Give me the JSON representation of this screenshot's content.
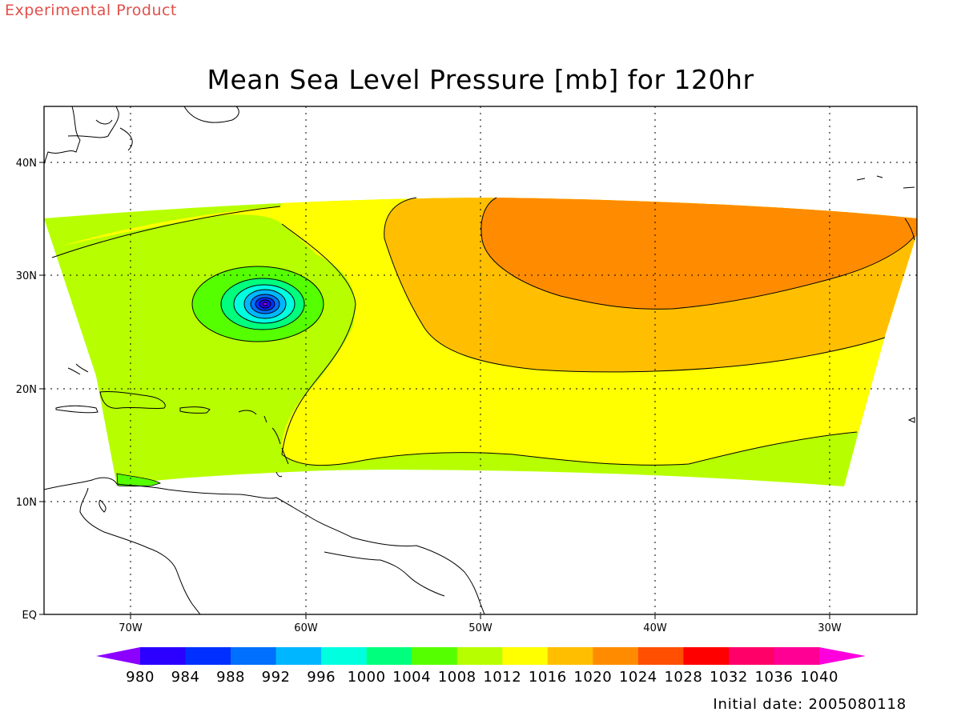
{
  "header": {
    "experimental_label": "Experimental Product",
    "title": "Mean Sea Level Pressure [mb] for 120hr"
  },
  "footer": {
    "initial_date": "Initial date: 2005080118"
  },
  "map": {
    "lat_labels": [
      "40N",
      "30N",
      "20N",
      "10N",
      "EQ"
    ],
    "lon_labels": [
      "70W",
      "60W",
      "50W",
      "40W",
      "30W"
    ],
    "domain": {
      "lon_range": [
        -75,
        -25
      ],
      "lat_range": [
        0,
        45
      ]
    },
    "storm_center": {
      "lon": -62.3,
      "lat": 27.4
    },
    "fields": [
      {
        "name": "1008-1012 band",
        "color": "#b7ff00"
      },
      {
        "name": "1012-1016 band",
        "color": "#ffff00"
      },
      {
        "name": "1016-1020 band",
        "color": "#ffbf00"
      },
      {
        "name": "1020-1024 band",
        "color": "#ff8c00"
      },
      {
        "name": "1004-1008 band",
        "color": "#55ff00"
      }
    ]
  },
  "colorbar": {
    "levels": [
      "980",
      "984",
      "988",
      "992",
      "996",
      "1000",
      "1004",
      "1008",
      "1012",
      "1016",
      "1020",
      "1024",
      "1028",
      "1032",
      "1036",
      "1040"
    ],
    "colors": [
      "#8c00ff",
      "#2b00ff",
      "#0030ff",
      "#0070ff",
      "#00b7ff",
      "#00ffdf",
      "#00ff7d",
      "#55ff00",
      "#b7ff00",
      "#ffff00",
      "#ffbf00",
      "#ff8c00",
      "#ff4f00",
      "#ff0000",
      "#ff0068",
      "#ff0095",
      "#ff00dd"
    ]
  }
}
